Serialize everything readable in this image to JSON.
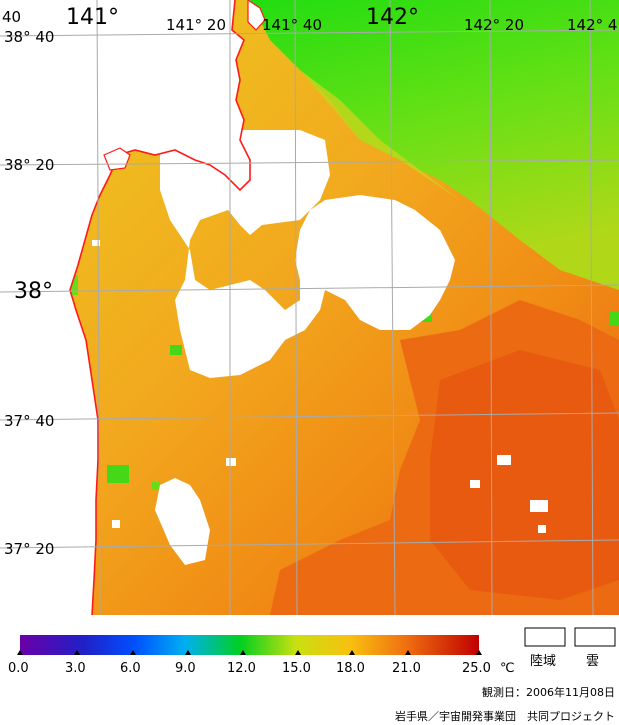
{
  "map": {
    "lon_labels_large": [
      "141°",
      "142°"
    ],
    "lon_labels_small": [
      "141° 20",
      "141° 40",
      "142° 20",
      "142° 4"
    ],
    "corner_label": "40",
    "lat_labels_large": [
      "38°"
    ],
    "lat_labels_small": [
      "38° 40",
      "38° 20",
      "37° 40",
      "37° 20"
    ],
    "colors": {
      "warm": "#f07a10",
      "hot": "#e85a10",
      "mid": "#f2a81e",
      "cool": "#eccc20",
      "green": "#22dd11",
      "yellowgreen": "#a8dd18",
      "land": "#ffffff",
      "coast": "#ff1a1a",
      "grid": "#aaaaaa"
    }
  },
  "legend": {
    "ticks": [
      "0.0",
      "3.0",
      "6.0",
      "9.0",
      "12.0",
      "15.0",
      "18.0",
      "21.0",
      "25.0"
    ],
    "unit": "℃",
    "land_label": "陸域",
    "cloud_label": "雲"
  },
  "footer": {
    "observation_date": "観測日：2006年11月08日",
    "credit": "岩手県／宇宙開発事業団　共同プロジェクト"
  }
}
